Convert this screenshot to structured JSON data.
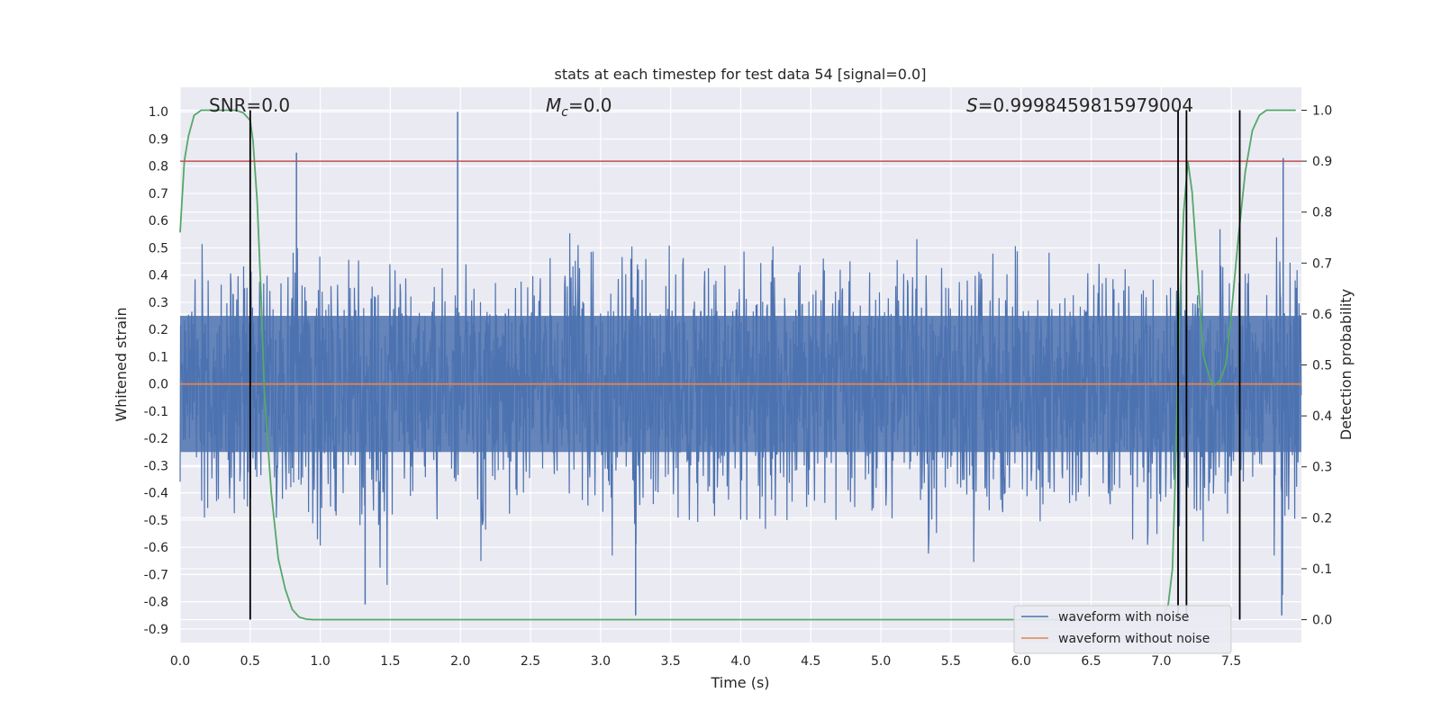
{
  "chart_data": {
    "type": "line",
    "title": "stats at each timestep for test data 54 [signal=0.0]",
    "xlabel": "Time (s)",
    "ylabel": "Whitened strain",
    "y2label": "Detection probability",
    "xlim": [
      0.0,
      8.0
    ],
    "ylim": [
      -0.95,
      1.09
    ],
    "y2lim": [
      -0.045,
      1.045
    ],
    "grid": true,
    "legend_position": "lower-right",
    "x_ticks": [
      "0.0",
      "0.5",
      "1.0",
      "1.5",
      "2.0",
      "2.5",
      "3.0",
      "3.5",
      "4.0",
      "4.5",
      "5.0",
      "5.5",
      "6.0",
      "6.5",
      "7.0",
      "7.5"
    ],
    "y_ticks": [
      "1.0",
      "0.9",
      "0.8",
      "0.7",
      "0.6",
      "0.5",
      "0.4",
      "0.3",
      "0.2",
      "0.1",
      "0.0",
      "-0.1",
      "-0.2",
      "-0.3",
      "-0.4",
      "-0.5",
      "-0.6",
      "-0.7",
      "-0.8",
      "-0.9"
    ],
    "y2_ticks": [
      "1.0",
      "0.9",
      "0.8",
      "0.7",
      "0.6",
      "0.5",
      "0.4",
      "0.3",
      "0.2",
      "0.1",
      "0.0"
    ],
    "annotations": {
      "snr": "SNR=0.0",
      "mc_symbol": "M",
      "mc_sub": "c",
      "mc_value": "=0.0",
      "s_symbol": "S",
      "s_value": "=0.9998459815979004"
    },
    "series": [
      {
        "name": "waveform with noise",
        "color": "#4c72b0",
        "axis": "left",
        "envelope_upper": [
          0.35,
          0.55,
          0.5,
          0.6,
          0.55,
          0.45,
          0.5,
          0.55,
          0.65,
          0.62,
          0.5,
          0.45,
          0.55,
          0.5,
          0.45,
          0.5,
          0.5,
          0.4,
          0.45,
          0.45,
          0.58,
          0.45,
          0.55,
          0.45,
          0.5,
          0.5,
          0.55,
          0.62,
          0.55,
          0.55,
          0.48,
          0.6,
          0.65,
          0.5,
          0.55,
          0.5,
          0.55,
          0.55,
          0.5,
          0.45,
          0.55,
          0.55,
          0.6,
          0.5,
          0.45,
          0.55,
          0.45,
          0.55,
          0.55,
          0.5,
          0.48,
          0.55,
          0.6,
          0.55,
          0.5,
          0.52,
          0.55,
          0.6,
          0.55,
          0.62,
          0.55,
          0.55,
          0.55,
          0.5,
          0.55,
          0.58,
          0.6,
          0.55,
          0.5,
          0.5,
          0.55,
          0.6,
          0.7,
          0.55,
          0.6,
          0.55,
          0.5,
          0.55,
          0.6,
          0.55
        ],
        "envelope_lower": [
          -0.45,
          -0.55,
          -0.5,
          -0.6,
          -0.55,
          -0.5,
          -0.7,
          -0.55,
          -0.6,
          -0.75,
          -0.65,
          -0.55,
          -0.6,
          -0.7,
          -0.8,
          -0.55,
          -0.55,
          -0.5,
          -0.6,
          -0.55,
          -0.5,
          -0.7,
          -0.55,
          -0.55,
          -0.5,
          -0.5,
          -0.55,
          -0.6,
          -0.55,
          -0.55,
          -0.7,
          -0.6,
          -0.85,
          -0.55,
          -0.5,
          -0.6,
          -0.55,
          -0.55,
          -0.55,
          -0.55,
          -0.6,
          -0.65,
          -0.55,
          -0.6,
          -0.55,
          -0.55,
          -0.6,
          -0.55,
          -0.6,
          -0.5,
          -0.55,
          -0.6,
          -0.55,
          -0.7,
          -0.55,
          -0.6,
          -0.75,
          -0.55,
          -0.6,
          -0.55,
          -0.55,
          -0.75,
          -0.6,
          -0.55,
          -0.6,
          -0.55,
          -0.6,
          -0.7,
          -0.65,
          -0.6,
          -0.55,
          -0.6,
          -0.65,
          -0.6,
          -0.55,
          -0.6,
          -0.55,
          -0.6,
          -0.85,
          -0.6
        ],
        "peaks": [
          {
            "x": 0.83,
            "y": 0.85
          },
          {
            "x": 1.98,
            "y": 1.0
          },
          {
            "x": 7.87,
            "y": 0.83
          },
          {
            "x": 3.25,
            "y": -0.85
          },
          {
            "x": 7.86,
            "y": -0.85
          },
          {
            "x": 1.32,
            "y": -0.81
          }
        ]
      },
      {
        "name": "waveform without noise",
        "color": "#dd8452",
        "axis": "left",
        "x": [
          0.0,
          8.0
        ],
        "y": [
          0.0,
          0.0
        ]
      },
      {
        "color": "#55a868",
        "axis": "right",
        "x": [
          0.0,
          0.03,
          0.06,
          0.1,
          0.15,
          0.2,
          0.3,
          0.4,
          0.45,
          0.5,
          0.52,
          0.55,
          0.58,
          0.6,
          0.65,
          0.7,
          0.75,
          0.8,
          0.85,
          0.9,
          0.95,
          1.0,
          2.0,
          3.0,
          4.0,
          5.0,
          6.0,
          6.5,
          7.0,
          7.05,
          7.08,
          7.1,
          7.13,
          7.16,
          7.19,
          7.22,
          7.25,
          7.3,
          7.35,
          7.38,
          7.42,
          7.46,
          7.5,
          7.55,
          7.6,
          7.65,
          7.7,
          7.75,
          7.8,
          7.85,
          7.9,
          7.96
        ],
        "y": [
          0.76,
          0.9,
          0.95,
          0.99,
          1.0,
          1.0,
          1.0,
          1.0,
          0.995,
          0.98,
          0.94,
          0.82,
          0.62,
          0.45,
          0.25,
          0.12,
          0.06,
          0.02,
          0.005,
          0.001,
          0.0,
          0.0,
          0.0,
          0.0,
          0.0,
          0.0,
          0.0,
          0.0,
          0.0,
          0.03,
          0.1,
          0.28,
          0.6,
          0.8,
          0.9,
          0.84,
          0.72,
          0.52,
          0.47,
          0.46,
          0.47,
          0.5,
          0.6,
          0.75,
          0.88,
          0.96,
          0.99,
          1.0,
          1.0,
          1.0,
          1.0,
          1.0
        ]
      }
    ],
    "hlines": [
      {
        "axis": "right",
        "y": 0.9,
        "color": "#c44e52"
      }
    ],
    "vlines": [
      {
        "x": 0.5,
        "y2_range": [
          0.0,
          1.0
        ]
      },
      {
        "x": 7.12,
        "y2_range": [
          0.0,
          1.0
        ]
      },
      {
        "x": 7.18,
        "y2_range": [
          0.0,
          1.0
        ]
      },
      {
        "x": 7.56,
        "y2_range": [
          0.0,
          1.0
        ]
      }
    ]
  }
}
